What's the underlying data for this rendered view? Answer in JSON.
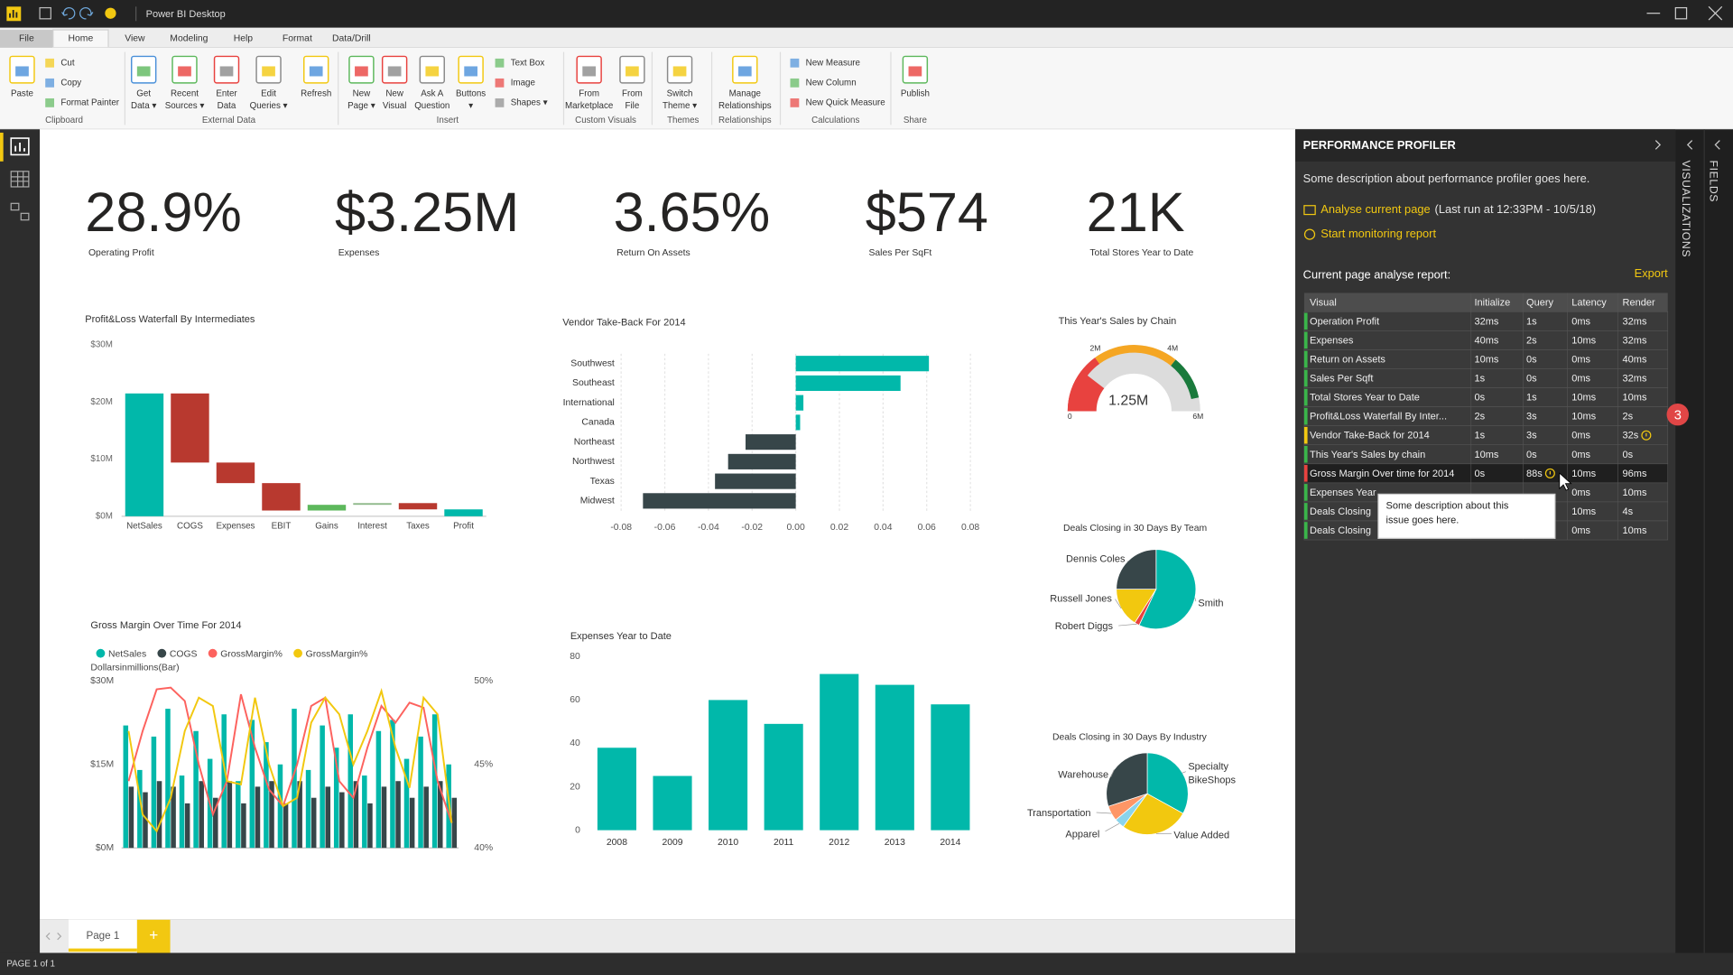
{
  "app": {
    "title": "Power BI Desktop",
    "page_tab": "Page 1",
    "add_page": "+",
    "status": "PAGE 1 of 1",
    "side_tabs": [
      "VISUALIZATIONS",
      "FIELDS"
    ]
  },
  "menu": [
    "File",
    "Home",
    "View",
    "Modeling",
    "Help",
    "Format",
    "Data/Drill"
  ],
  "ribbon": [
    {
      "name": "Clipboard",
      "items": [
        [
          "Paste"
        ]
      ],
      "small": [
        "Cut",
        "Copy",
        "Format Painter"
      ]
    },
    {
      "name": "External Data",
      "items": [
        [
          "Get",
          "Data ▾"
        ],
        [
          "Recent",
          "Sources ▾"
        ],
        [
          "Enter",
          "Data"
        ],
        [
          "Edit",
          "Queries ▾"
        ],
        [
          "Refresh"
        ]
      ]
    },
    {
      "name": "Insert",
      "items": [
        [
          "New",
          "Page ▾"
        ],
        [
          "New",
          "Visual"
        ],
        [
          "Ask A",
          "Question"
        ],
        [
          "Buttons",
          "▾"
        ]
      ],
      "small": [
        "Text Box",
        "Image",
        "Shapes ▾"
      ]
    },
    {
      "name": "Custom Visuals",
      "items": [
        [
          "From",
          "Marketplace"
        ],
        [
          "From",
          "File"
        ]
      ]
    },
    {
      "name": "Themes",
      "items": [
        [
          "Switch",
          "Theme ▾"
        ]
      ]
    },
    {
      "name": "Relationships",
      "items": [
        [
          "Manage",
          "Relationships"
        ]
      ]
    },
    {
      "name": "Calculations",
      "small": [
        "New Measure",
        "New Column",
        "New Quick Measure"
      ]
    },
    {
      "name": "Share",
      "items": [
        [
          "Publish"
        ]
      ]
    }
  ],
  "kpis": [
    {
      "value": "28.9%",
      "label": "Operating Profit"
    },
    {
      "value": "$3.25M",
      "label": "Expenses"
    },
    {
      "value": "3.65%",
      "label": "Return On Assets"
    },
    {
      "value": "$574",
      "label": "Sales Per SqFt"
    },
    {
      "value": "21K",
      "label": "Total Stores Year to Date"
    }
  ],
  "charts": {
    "waterfall": {
      "type": "waterfall",
      "title": "Profit&Loss Waterfall By Intermediates",
      "categories": [
        "NetSales",
        "COGS",
        "Expenses",
        "EBIT",
        "Gains",
        "Interest",
        "Taxes",
        "Profit"
      ],
      "values": [
        21.5,
        -12.1,
        -3.6,
        -4.8,
        1.0,
        0.3,
        -1.1,
        1.2
      ],
      "is_total": [
        true,
        false,
        false,
        false,
        false,
        false,
        false,
        true
      ],
      "colors": [
        "#01b8aa",
        "#b8392f",
        "#b8392f",
        "#b8392f",
        "#5db85c",
        "#8fb98a",
        "#b8392f",
        "#01b8aa"
      ],
      "ylim": [
        0,
        30
      ],
      "yticks": [
        {
          "value": 0,
          "label": "$0M"
        },
        {
          "value": 10,
          "label": "$10M"
        },
        {
          "value": 20,
          "label": "$20M"
        },
        {
          "value": 30,
          "label": "$30M"
        }
      ]
    },
    "vendor": {
      "type": "bar",
      "orientation": "horizontal",
      "title": "Vendor Take-Back For 2014",
      "categories": [
        "Southwest",
        "Southeast",
        "International",
        "Canada",
        "Northeast",
        "Northwest",
        "Texas",
        "Midwest"
      ],
      "values": [
        0.061,
        0.048,
        0.0035,
        0.002,
        -0.023,
        -0.031,
        -0.037,
        -0.07
      ],
      "colors": {
        "positive": "#01b8aa",
        "negative": "#374649"
      },
      "xlim": [
        -0.08,
        0.08
      ],
      "xticks": [
        -0.08,
        -0.06,
        -0.04,
        -0.02,
        {
          "value": 0,
          "label": "0.00"
        },
        0.02,
        0.04,
        0.06,
        0.08
      ],
      "grid": true
    },
    "gauge": {
      "type": "gauge",
      "title": "This Year's Sales by Chain",
      "value": 1.25,
      "value_label": "1.25M",
      "color": "#e8423f",
      "lim": [
        0,
        6
      ],
      "ticks": [
        0,
        {
          "value": 2,
          "label": "2M"
        },
        {
          "value": 4,
          "label": "4M"
        },
        {
          "value": 6,
          "label": "6M"
        }
      ],
      "bands": [
        {
          "from": 0,
          "to": 1.8,
          "color": "#e8423f"
        },
        {
          "from": 1.8,
          "to": 4.3,
          "color": "#f5a623"
        },
        {
          "from": 4.3,
          "to": 5.6,
          "color": "#1a7a3c"
        }
      ]
    },
    "team": {
      "type": "pie",
      "title": "Deals Closing in 30 Days By Team",
      "categories": [
        [
          "Smith"
        ],
        [
          "Robert Diggs"
        ],
        [
          "Russell Jones"
        ],
        [
          "Dennis Coles"
        ]
      ],
      "values": [
        57,
        2,
        16,
        25
      ],
      "colors": [
        "#01b8aa",
        "#e8423f",
        "#f2c80f",
        "#374649"
      ]
    },
    "industry": {
      "type": "pie",
      "title": "Deals Closing in 30 Days By Industry",
      "categories": [
        [
          "Specialty",
          "BikeShops"
        ],
        [
          "Value Added"
        ],
        [
          "Apparel"
        ],
        [
          "Transportation"
        ],
        [
          "Warehouse"
        ]
      ],
      "values": [
        33,
        27,
        4,
        6,
        30
      ],
      "colors": [
        "#01b8aa",
        "#f2c80f",
        "#8ad4eb",
        "#fe9666",
        "#374649"
      ]
    },
    "margin": {
      "type": "combo",
      "title": "Gross Margin Over Time For 2014",
      "y_title": "Dollarsinmillions(Bar)",
      "categories": [
        null,
        null,
        null,
        null,
        null,
        null,
        null,
        null,
        null,
        null,
        null,
        null,
        null,
        null,
        null,
        null,
        null,
        null,
        null,
        null,
        null,
        null,
        null,
        null
      ],
      "series": [
        {
          "name": "NetSales",
          "color": "#01b8aa",
          "kind": "bar",
          "values": [
            22,
            14,
            20,
            25,
            13,
            21,
            16,
            24,
            12,
            23,
            19,
            15,
            25,
            14,
            22,
            18,
            24,
            13,
            21,
            23,
            16,
            20,
            24,
            15
          ]
        },
        {
          "name": "COGS",
          "color": "#374649",
          "kind": "bar",
          "values": [
            11,
            10,
            12,
            11,
            8,
            12,
            9,
            12,
            8,
            11,
            12,
            8,
            12,
            9,
            11,
            10,
            12,
            8,
            11,
            12,
            9,
            11,
            12,
            9
          ]
        },
        {
          "name": "GrossMargin%",
          "color": "#fd625e",
          "kind": "line",
          "axis": "y2",
          "values": [
            44,
            47,
            49.5,
            49.6,
            48.8,
            45,
            42,
            44,
            49.2,
            46,
            43.5,
            42.5,
            45,
            48.5,
            49,
            44,
            43,
            46,
            48.5,
            47.5,
            48.7,
            48.4,
            44,
            41.5
          ]
        },
        {
          "name": "GrossMargin%",
          "color": "#f2c80f",
          "kind": "line",
          "axis": "y2",
          "values": [
            47,
            42,
            41,
            43,
            47,
            49,
            48.5,
            44,
            43.8,
            49,
            45,
            42.5,
            43,
            47.5,
            49,
            48,
            45,
            47,
            49.4,
            46,
            43.6,
            49,
            48,
            41.5
          ]
        }
      ],
      "ylim": [
        0,
        30
      ],
      "yticks": [
        {
          "value": 0,
          "label": "$0M"
        },
        {
          "value": 15,
          "label": "$15M"
        },
        {
          "value": 30,
          "label": "$30M"
        }
      ],
      "y2lim": [
        40,
        50
      ],
      "y2ticks": [
        {
          "value": 40,
          "label": "40%"
        },
        {
          "value": 45,
          "label": "45%"
        },
        {
          "value": 50,
          "label": "50%"
        }
      ]
    },
    "expenses": {
      "type": "bar",
      "title": "Expenses Year to Date",
      "categories": [
        "2008",
        "2009",
        "2010",
        "2011",
        "2012",
        "2013",
        "2014"
      ],
      "values": [
        38,
        25,
        60,
        49,
        72,
        67,
        58
      ],
      "color": "#01b8aa",
      "ylim": [
        0,
        80
      ],
      "yticks": [
        0,
        20,
        40,
        60,
        80
      ]
    }
  },
  "profiler": {
    "title": "PERFORMANCE PROFILER",
    "description": "Some description about performance profiler goes here.",
    "analyse": "Analyse current page",
    "last_run": "(Last run at 12:33PM - 10/5/18)",
    "monitor": "Start monitoring report",
    "report_title": "Current page analyse report:",
    "export": "Export",
    "columns": [
      "Visual",
      "Initialize",
      "Query",
      "Latency",
      "Render"
    ],
    "rows": [
      {
        "status": "#3ab54a",
        "cells": [
          "Operation Profit",
          "32ms",
          "1s",
          "0ms",
          "32ms"
        ],
        "warn": []
      },
      {
        "status": "#3ab54a",
        "cells": [
          "Expenses",
          "40ms",
          "2s",
          "10ms",
          "32ms"
        ],
        "warn": []
      },
      {
        "status": "#3ab54a",
        "cells": [
          "Return on Assets",
          "10ms",
          "0s",
          "0ms",
          "40ms"
        ],
        "warn": []
      },
      {
        "status": "#3ab54a",
        "cells": [
          "Sales Per Sqft",
          "1s",
          "0s",
          "0ms",
          "32ms"
        ],
        "warn": []
      },
      {
        "status": "#3ab54a",
        "cells": [
          "Total Stores Year to Date",
          "0s",
          "1s",
          "10ms",
          "10ms"
        ],
        "warn": []
      },
      {
        "status": "#3ab54a",
        "cells": [
          "Profit&Loss Waterfall By Inter...",
          "2s",
          "3s",
          "10ms",
          "2s"
        ],
        "warn": []
      },
      {
        "status": "#f2c811",
        "cells": [
          "Vendor Take-Back for 2014",
          "1s",
          "3s",
          "0ms",
          "32s"
        ],
        "warn": [
          4
        ]
      },
      {
        "status": "#3ab54a",
        "cells": [
          "This Year's Sales by chain",
          "10ms",
          "0s",
          "0ms",
          "0s"
        ],
        "warn": []
      },
      {
        "status": "#e8423f",
        "cells": [
          "Gross Margin Over time for 2014",
          "0s",
          "88s",
          "10ms",
          "96ms"
        ],
        "warn": [
          2
        ]
      },
      {
        "status": "#3ab54a",
        "cells": [
          "Expenses Year",
          null,
          null,
          "0ms",
          "10ms"
        ],
        "warn": []
      },
      {
        "status": "#3ab54a",
        "cells": [
          "Deals Closing",
          null,
          null,
          "10ms",
          "4s"
        ],
        "warn": []
      },
      {
        "status": "#3ab54a",
        "cells": [
          "Deals Closing",
          null,
          null,
          "0ms",
          "10ms"
        ],
        "warn": []
      }
    ],
    "selected_row": 8,
    "tooltip": [
      "Some description about this",
      "issue goes here."
    ],
    "badge": 3
  }
}
